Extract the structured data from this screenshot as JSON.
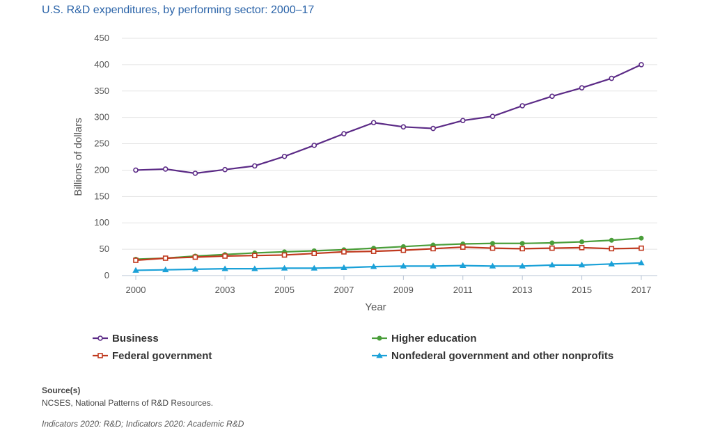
{
  "title": "U.S. R&D expenditures, by performing sector: 2000–17",
  "colors": {
    "business": "#5b2a86",
    "higher_education": "#4a9e3a",
    "federal_government": "#c0391e",
    "nonfederal": "#1ba1d8"
  },
  "chart_data": {
    "type": "line",
    "title": "U.S. R&D expenditures, by performing sector: 2000–17",
    "xlabel": "Year",
    "ylabel": "Billions of dollars",
    "x": [
      2000,
      2001,
      2002,
      2003,
      2004,
      2005,
      2006,
      2007,
      2008,
      2009,
      2010,
      2011,
      2012,
      2013,
      2014,
      2015,
      2016,
      2017
    ],
    "x_tick_labels": [
      "2000",
      "2003",
      "2005",
      "2007",
      "2009",
      "2011",
      "2013",
      "2015",
      "2017"
    ],
    "y_ticks": [
      0,
      50,
      100,
      150,
      200,
      250,
      300,
      350,
      400,
      450
    ],
    "ylim": [
      0,
      450
    ],
    "grid": true,
    "legend_position": "bottom",
    "series": [
      {
        "key": "business",
        "name": "Business",
        "marker": "circle",
        "values": [
          200,
          202,
          194,
          201,
          208,
          226,
          247,
          269,
          290,
          282,
          279,
          294,
          302,
          322,
          340,
          356,
          374,
          400
        ]
      },
      {
        "key": "higher_education",
        "name": "Higher education",
        "marker": "circle-filled",
        "values": [
          31,
          33,
          37,
          40,
          43,
          45,
          47,
          49,
          52,
          55,
          58,
          60,
          61,
          61,
          62,
          64,
          67,
          71
        ]
      },
      {
        "key": "federal_government",
        "name": "Federal government",
        "marker": "square",
        "values": [
          29,
          33,
          35,
          37,
          38,
          39,
          42,
          45,
          46,
          48,
          51,
          54,
          52,
          51,
          52,
          53,
          51,
          52
        ]
      },
      {
        "key": "nonfederal",
        "name": "Nonfederal government and other nonprofits",
        "marker": "triangle",
        "values": [
          10,
          11,
          12,
          13,
          13,
          14,
          14,
          15,
          17,
          18,
          18,
          19,
          18,
          18,
          20,
          20,
          22,
          24
        ]
      }
    ]
  },
  "source": {
    "heading": "Source(s)",
    "text": "NCSES, National Patterns of R&D Resources.",
    "indicators": "Indicators 2020: R&D; Indicators 2020: Academic R&D"
  }
}
